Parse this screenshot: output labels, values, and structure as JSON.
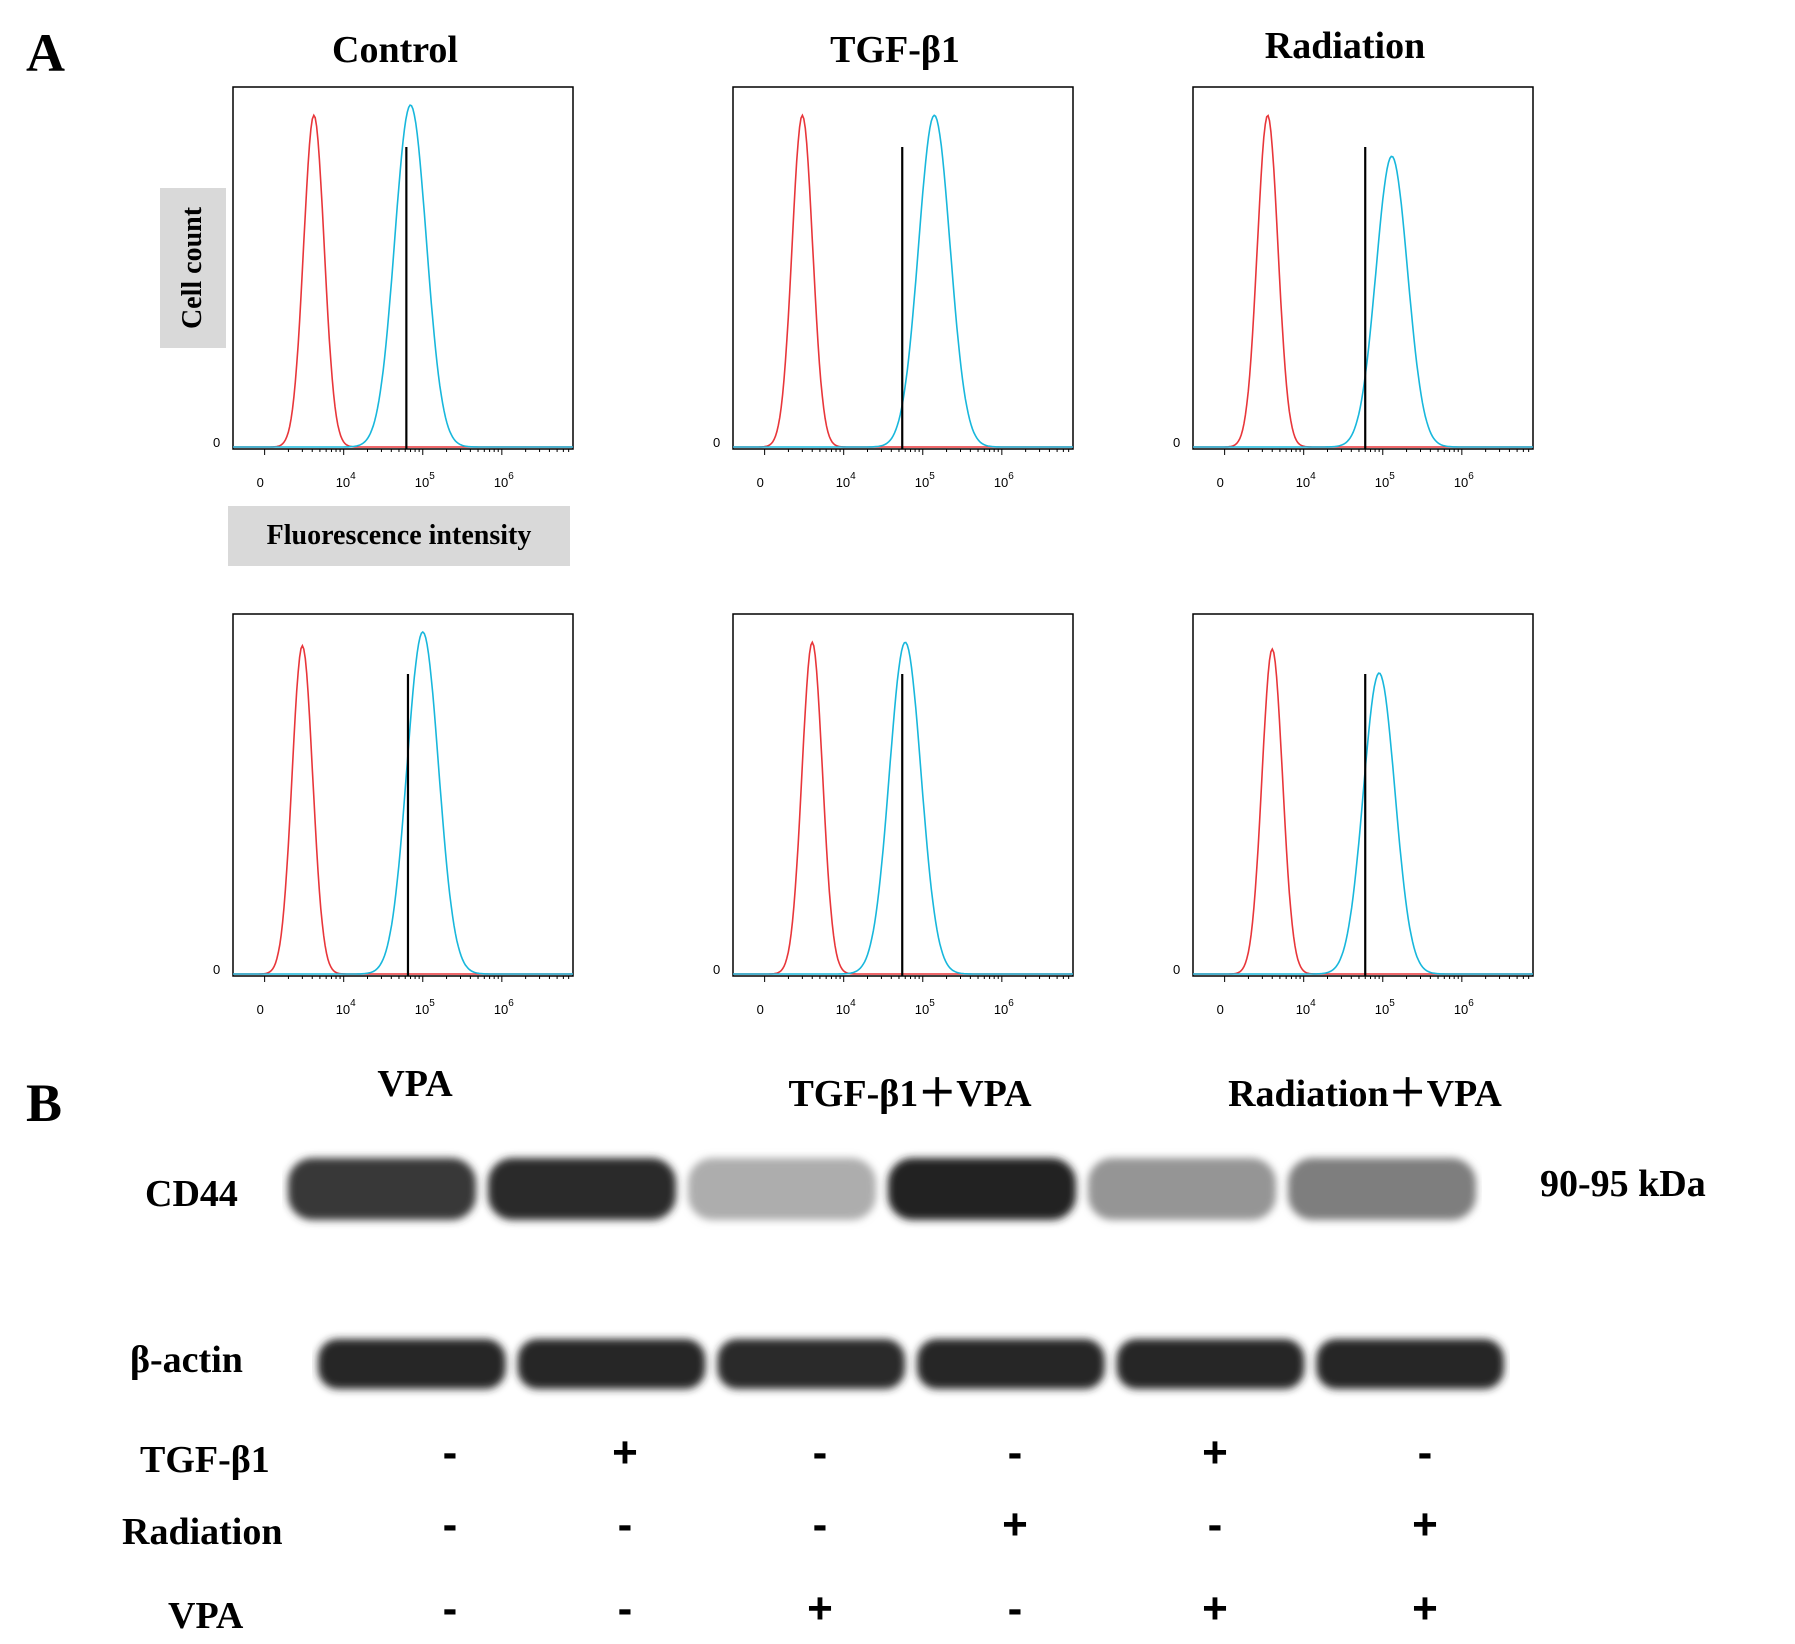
{
  "panel_A": {
    "letter": "A",
    "axis_y_label": "Cell count",
    "axis_x_label": "Fluorescence intensity",
    "zero_label": "0",
    "tick_labels": [
      {
        "base": "0",
        "exp": ""
      },
      {
        "base": "10",
        "exp": "4"
      },
      {
        "base": "10",
        "exp": "5"
      },
      {
        "base": "10",
        "exp": "6"
      }
    ]
  },
  "panel_B": {
    "letter": "B"
  },
  "chart_data": [
    {
      "type": "area",
      "title": "Control",
      "x_scale": "log",
      "xticks": [
        "0",
        "10^4",
        "10^5",
        "10^6"
      ],
      "gate_x": 62000,
      "series": [
        {
          "color": "#e8363a",
          "peak_x": 4200,
          "peak_height": 0.97
        },
        {
          "color": "#18b7dc",
          "peak_x": 70000,
          "peak_height": 1.0
        }
      ]
    },
    {
      "type": "area",
      "title": "TGF-β1",
      "x_scale": "log",
      "xticks": [
        "0",
        "10^4",
        "10^5",
        "10^6"
      ],
      "gate_x": 55000,
      "series": [
        {
          "color": "#e8363a",
          "peak_x": 3000,
          "peak_height": 0.97
        },
        {
          "color": "#18b7dc",
          "peak_x": 140000,
          "peak_height": 0.97
        }
      ]
    },
    {
      "type": "area",
      "title": "Radiation",
      "x_scale": "log",
      "xticks": [
        "0",
        "10^4",
        "10^5",
        "10^6"
      ],
      "gate_x": 60000,
      "series": [
        {
          "color": "#e8363a",
          "peak_x": 3500,
          "peak_height": 0.97
        },
        {
          "color": "#18b7dc",
          "peak_x": 130000,
          "peak_height": 0.85
        }
      ]
    },
    {
      "type": "area",
      "title": "VPA",
      "x_scale": "log",
      "xticks": [
        "0",
        "10^4",
        "10^5",
        "10^6"
      ],
      "gate_x": 65000,
      "series": [
        {
          "color": "#e8363a",
          "peak_x": 3000,
          "peak_height": 0.96
        },
        {
          "color": "#18b7dc",
          "peak_x": 100000,
          "peak_height": 1.0
        }
      ]
    },
    {
      "type": "area",
      "title": "TGF-β1＋VPA",
      "x_scale": "log",
      "xticks": [
        "0",
        "10^4",
        "10^5",
        "10^6"
      ],
      "gate_x": 55000,
      "series": [
        {
          "color": "#e8363a",
          "peak_x": 4000,
          "peak_height": 0.97
        },
        {
          "color": "#18b7dc",
          "peak_x": 60000,
          "peak_height": 0.97
        }
      ]
    },
    {
      "type": "area",
      "title": "Radiation＋VPA",
      "x_scale": "log",
      "xticks": [
        "0",
        "10^4",
        "10^5",
        "10^6"
      ],
      "gate_x": 60000,
      "series": [
        {
          "color": "#e8363a",
          "peak_x": 4000,
          "peak_height": 0.95
        },
        {
          "color": "#18b7dc",
          "peak_x": 90000,
          "peak_height": 0.88
        }
      ]
    }
  ],
  "blot": {
    "cd44_label": "CD44",
    "actin_label": "β-actin",
    "kda_label": "90-95 kDa",
    "cd44_intensity": [
      0.85,
      0.9,
      0.35,
      0.95,
      0.45,
      0.55
    ],
    "actin_intensity": [
      0.92,
      0.92,
      0.9,
      0.92,
      0.92,
      0.92
    ],
    "rows": [
      {
        "label": "TGF-β1",
        "values": [
          "-",
          "+",
          "-",
          "-",
          "+",
          "-"
        ]
      },
      {
        "label": "Radiation",
        "values": [
          "-",
          "-",
          "-",
          "+",
          "-",
          "+"
        ]
      },
      {
        "label": "VPA",
        "values": [
          "-",
          "-",
          "+",
          "-",
          "+",
          "+"
        ]
      }
    ]
  },
  "colors": {
    "isotype": "#e8363a",
    "cd44": "#18b7dc",
    "label_box": "#d9d9d9"
  }
}
